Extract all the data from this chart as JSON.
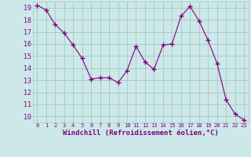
{
  "x": [
    0,
    1,
    2,
    3,
    4,
    5,
    6,
    7,
    8,
    9,
    10,
    11,
    12,
    13,
    14,
    15,
    16,
    17,
    18,
    19,
    20,
    21,
    22,
    23
  ],
  "y": [
    19.2,
    18.8,
    17.6,
    16.9,
    15.9,
    14.8,
    13.1,
    13.2,
    13.2,
    12.8,
    13.8,
    15.8,
    14.5,
    13.9,
    15.9,
    16.0,
    18.3,
    19.1,
    17.9,
    16.3,
    14.4,
    11.4,
    10.2,
    9.7
  ],
  "line_color": "#800080",
  "marker": "+",
  "marker_size": 5,
  "marker_lw": 1.0,
  "bg_color": "#cce8e8",
  "grid_color": "#aacccc",
  "xlabel": "Windchill (Refroidissement éolien,°C)",
  "xlabel_color": "#800080",
  "tick_color": "#800080",
  "ylim": [
    9.5,
    19.5
  ],
  "xlim": [
    -0.5,
    23.5
  ],
  "yticks": [
    10,
    11,
    12,
    13,
    14,
    15,
    16,
    17,
    18,
    19
  ],
  "xticks": [
    0,
    1,
    2,
    3,
    4,
    5,
    6,
    7,
    8,
    9,
    10,
    11,
    12,
    13,
    14,
    15,
    16,
    17,
    18,
    19,
    20,
    21,
    22,
    23
  ]
}
